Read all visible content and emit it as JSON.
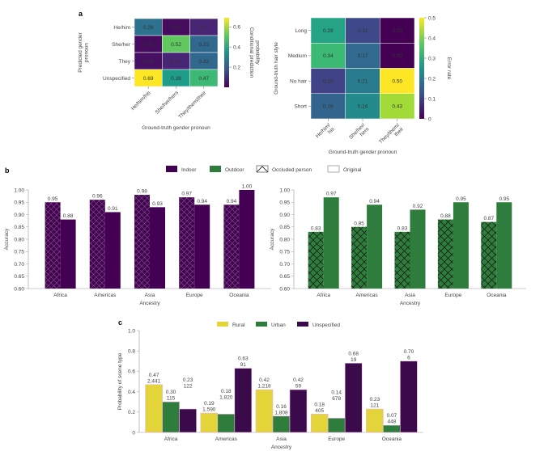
{
  "chart_data": [
    {
      "panel": "a",
      "type": "heatmap",
      "title": "",
      "xlabel": "Ground-truth gender pronoun",
      "ylabel": "Predicted gender pronoun",
      "x_categories": [
        "He/him/his",
        "She/her/hers",
        "They/them/their"
      ],
      "y_categories": [
        "He/him",
        "She/her",
        "They",
        "Unspecified"
      ],
      "values": [
        [
          0.26,
          0.02,
          0.07
        ],
        [
          0.02,
          0.52,
          0.23
        ],
        [
          0.03,
          0.07,
          0.23
        ],
        [
          0.69,
          0.38,
          0.47
        ]
      ],
      "value_labels": [
        [
          "0.26",
          "0.02",
          "0.07"
        ],
        [
          "0.02",
          "0.52",
          "0.23"
        ],
        [
          "0.03",
          "0.07",
          "0.23"
        ],
        [
          "0.69",
          "0.38",
          "0.47"
        ]
      ],
      "colorbar": {
        "label": "Conditional prediction probability",
        "range": [
          0,
          0.69
        ],
        "ticks": [
          0.2,
          0.4,
          0.6
        ],
        "tick_labels": [
          "0.2",
          "0.4",
          "0.6"
        ],
        "colormap": "viridis"
      }
    },
    {
      "panel": "a",
      "type": "heatmap",
      "title": "",
      "xlabel": "Ground-truth gender pronoun",
      "ylabel": "Ground-truth hair style",
      "x_categories": [
        "He/him/ his",
        "She/her/ hers",
        "They/them/ their"
      ],
      "y_categories": [
        "Long",
        "Medium",
        "No hair",
        "Short"
      ],
      "values": [
        [
          0.29,
          0.11,
          0.0
        ],
        [
          0.34,
          0.17,
          0.0
        ],
        [
          0.1,
          0.21,
          0.5
        ],
        [
          0.16,
          0.24,
          0.43
        ]
      ],
      "value_labels": [
        [
          "0.29",
          "0.11",
          "0.00"
        ],
        [
          "0.34",
          "0.17",
          "0.00"
        ],
        [
          "0.10",
          "0.21",
          "0.50"
        ],
        [
          "0.16",
          "0.24",
          "0.43"
        ]
      ],
      "colorbar": {
        "label": "Error rate",
        "range": [
          0,
          0.5
        ],
        "ticks": [
          0,
          0.1,
          0.2,
          0.3,
          0.4,
          0.5
        ],
        "tick_labels": [
          "0",
          "0.1",
          "0.2",
          "0.3",
          "0.4",
          "0.5"
        ],
        "colormap": "viridis"
      }
    },
    {
      "panel": "b",
      "type": "bar",
      "title": "Indoor",
      "xlabel": "Ancestry",
      "ylabel": "Accuracy",
      "ylim": [
        0.6,
        1.0
      ],
      "yticks": [
        "0.60",
        "0.65",
        "0.70",
        "0.75",
        "0.80",
        "0.85",
        "0.90",
        "0.95",
        "1.00"
      ],
      "categories": [
        "Africa",
        "Americas",
        "Asia",
        "Europe",
        "Oceania"
      ],
      "color": "#440154",
      "series": [
        {
          "name": "Occluded person",
          "hatched": true,
          "values": [
            0.95,
            0.96,
            0.98,
            0.97,
            0.94
          ],
          "labels": [
            "0.95",
            "0.96",
            "0.98",
            "0.97",
            "0.94"
          ]
        },
        {
          "name": "Original",
          "hatched": false,
          "values": [
            0.88,
            0.91,
            0.93,
            0.94,
            1.0
          ],
          "labels": [
            "0.88",
            "0.91",
            "0.93",
            "0.94",
            "1.00"
          ]
        }
      ]
    },
    {
      "panel": "b",
      "type": "bar",
      "title": "Outdoor",
      "xlabel": "Ancestry",
      "ylabel": "Accuracy",
      "ylim": [
        0.6,
        1.0
      ],
      "yticks": [
        "0.60",
        "0.65",
        "0.70",
        "0.75",
        "0.80",
        "0.85",
        "0.90",
        "0.95",
        "1.00"
      ],
      "categories": [
        "Africa",
        "Americas",
        "Asia",
        "Europe",
        "Oceania"
      ],
      "color": "#2e7d3c",
      "series": [
        {
          "name": "Occluded person",
          "hatched": true,
          "values": [
            0.83,
            0.85,
            0.83,
            0.88,
            0.87
          ],
          "labels": [
            "0.83",
            "0.85",
            "0.83",
            "0.88",
            "0.87"
          ]
        },
        {
          "name": "Original",
          "hatched": false,
          "values": [
            0.97,
            0.94,
            0.92,
            0.95,
            0.95
          ],
          "labels": [
            "0.97",
            "0.94",
            "0.92",
            "0.95",
            "0.95"
          ]
        }
      ]
    },
    {
      "panel": "c",
      "type": "bar",
      "title": "",
      "xlabel": "Ancestry",
      "ylabel": "Probability of scene type",
      "ylim": [
        0,
        1.0
      ],
      "yticks": [
        "0",
        "0.2",
        "0.4",
        "0.6",
        "0.8",
        "1.0"
      ],
      "categories": [
        "Africa",
        "Americas",
        "Asia",
        "Europe",
        "Oceania"
      ],
      "series": [
        {
          "name": "Rural",
          "color": "#e3d43a",
          "values": [
            0.47,
            0.19,
            0.42,
            0.18,
            0.23
          ],
          "prob_labels": [
            "0.47",
            "0.19",
            "0.42",
            "0.18",
            "0.23"
          ],
          "counts": [
            "2,441",
            "1,590",
            "1,218",
            "405",
            "121"
          ]
        },
        {
          "name": "Urban",
          "color": "#2e7d3c",
          "values": [
            0.3,
            0.18,
            0.16,
            0.14,
            0.07
          ],
          "prob_labels": [
            "0.30",
            "0.18",
            "0.16",
            "0.14",
            "0.07"
          ],
          "counts": [
            "115",
            "1,820",
            "1,808",
            "678",
            "448"
          ]
        },
        {
          "name": "Unspecified",
          "color": "#3b0a4a",
          "values": [
            0.23,
            0.63,
            0.42,
            0.68,
            0.7
          ],
          "prob_labels": [
            "0.23",
            "0.63",
            "0.42",
            "0.68",
            "0.70"
          ],
          "counts": [
            "122",
            "91",
            "59",
            "19",
            "6"
          ]
        }
      ]
    }
  ],
  "panel_letters": {
    "a": "a",
    "b": "b",
    "c": "c"
  },
  "legend_b": [
    {
      "label": "Indoor",
      "swatch": "indoor"
    },
    {
      "label": "Outdoor",
      "swatch": "outdoor"
    },
    {
      "label": "Occluded person",
      "swatch": "hatched"
    },
    {
      "label": "Original",
      "swatch": "empty"
    }
  ],
  "legend_c": [
    {
      "label": "Rural"
    },
    {
      "label": "Urban"
    },
    {
      "label": "Unspecified"
    }
  ],
  "colors": {
    "indoor": "#440154",
    "outdoor": "#2e7d3c",
    "rural": "#e3d43a",
    "urban": "#2e7d3c",
    "unspecified": "#3b0a4a"
  }
}
